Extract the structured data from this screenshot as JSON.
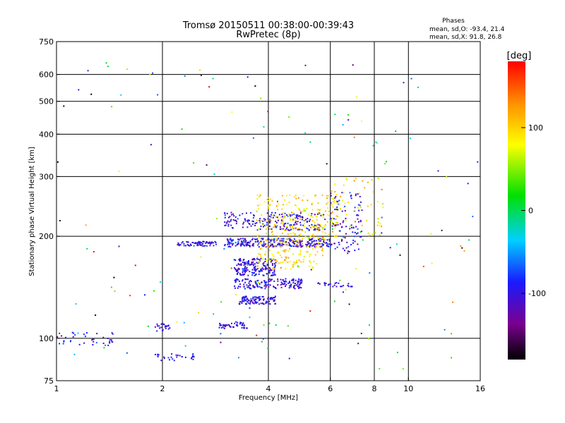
{
  "chart_data": {
    "type": "scatter",
    "title": "Tromsø 20150511 00:38:00-00:39:43",
    "subtitle": "RwPretec (8p)",
    "xlabel": "Frequency [MHz]",
    "ylabel": "Stationary phase Virtual Height [km]",
    "x_scale": "log",
    "y_scale": "log",
    "xlim": [
      1,
      16
    ],
    "ylim": [
      75,
      750
    ],
    "x_ticks": [
      1,
      2,
      4,
      6,
      8,
      10,
      16
    ],
    "y_ticks": [
      75,
      100,
      200,
      300,
      400,
      500,
      600,
      750
    ],
    "x_gridlines": [
      2,
      4,
      6,
      8,
      10
    ],
    "y_gridlines": [
      100,
      200,
      300,
      400,
      500,
      600
    ],
    "grid": true,
    "phases_box": {
      "title": "Phases",
      "line_o": "mean, sd,O: -93.4, 21.4",
      "line_x": "mean, sd,X:  91.8, 26.8"
    },
    "colorbar": {
      "label": "[deg]",
      "range": [
        -180,
        180
      ],
      "ticks": [
        100,
        0,
        -100
      ],
      "colormap": "rainbow (black-purple-blue-cyan-green-yellow-orange-red)"
    },
    "clusters": [
      {
        "f": [
          2.2,
          2.85
        ],
        "h": [
          187,
          193
        ],
        "phase_mean": -100,
        "phase_sd": 15,
        "count": 70
      },
      {
        "f": [
          3.0,
          6.0
        ],
        "h": [
          186,
          197
        ],
        "phase_mean": -100,
        "phase_sd": 18,
        "count": 280
      },
      {
        "f": [
          3.0,
          5.8
        ],
        "h": [
          208,
          235
        ],
        "phase_mean": -100,
        "phase_sd": 18,
        "count": 200
      },
      {
        "f": [
          3.2,
          4.2
        ],
        "h": [
          153,
          172
        ],
        "phase_mean": -100,
        "phase_sd": 15,
        "count": 180
      },
      {
        "f": [
          3.2,
          5.0
        ],
        "h": [
          140,
          150
        ],
        "phase_mean": -100,
        "phase_sd": 15,
        "count": 160
      },
      {
        "f": [
          3.3,
          4.2
        ],
        "h": [
          126,
          133
        ],
        "phase_mean": -100,
        "phase_sd": 15,
        "count": 110
      },
      {
        "f": [
          3.7,
          5.8
        ],
        "h": [
          160,
          200
        ],
        "phase_mean": 95,
        "phase_sd": 18,
        "count": 160
      },
      {
        "f": [
          3.7,
          6.3
        ],
        "h": [
          200,
          265
        ],
        "phase_mean": 95,
        "phase_sd": 18,
        "count": 200
      },
      {
        "f": [
          6.0,
          7.4
        ],
        "h": [
          180,
          270
        ],
        "phase_mean": -100,
        "phase_sd": 20,
        "count": 100
      },
      {
        "f": [
          6.0,
          8.5
        ],
        "h": [
          200,
          300
        ],
        "phase_mean": 90,
        "phase_sd": 25,
        "count": 60
      },
      {
        "f": [
          5.5,
          7.0
        ],
        "h": [
          142,
          146
        ],
        "phase_mean": -100,
        "phase_sd": 10,
        "count": 25
      },
      {
        "f": [
          2.9,
          3.5
        ],
        "h": [
          107,
          112
        ],
        "phase_mean": -100,
        "phase_sd": 12,
        "count": 50
      },
      {
        "f": [
          1.9,
          2.1
        ],
        "h": [
          105,
          111
        ],
        "phase_mean": -100,
        "phase_sd": 12,
        "count": 25
      },
      {
        "f": [
          1.9,
          2.5
        ],
        "h": [
          86,
          90
        ],
        "phase_mean": -100,
        "phase_sd": 12,
        "count": 30
      },
      {
        "f": [
          1.0,
          1.5
        ],
        "h": [
          95,
          104
        ],
        "phase_mean": -100,
        "phase_sd": 20,
        "count": 40
      },
      {
        "f": [
          1.0,
          16.0
        ],
        "h": [
          80,
          650
        ],
        "phase_mean": 0,
        "phase_sd": 100,
        "count": 150
      }
    ]
  }
}
